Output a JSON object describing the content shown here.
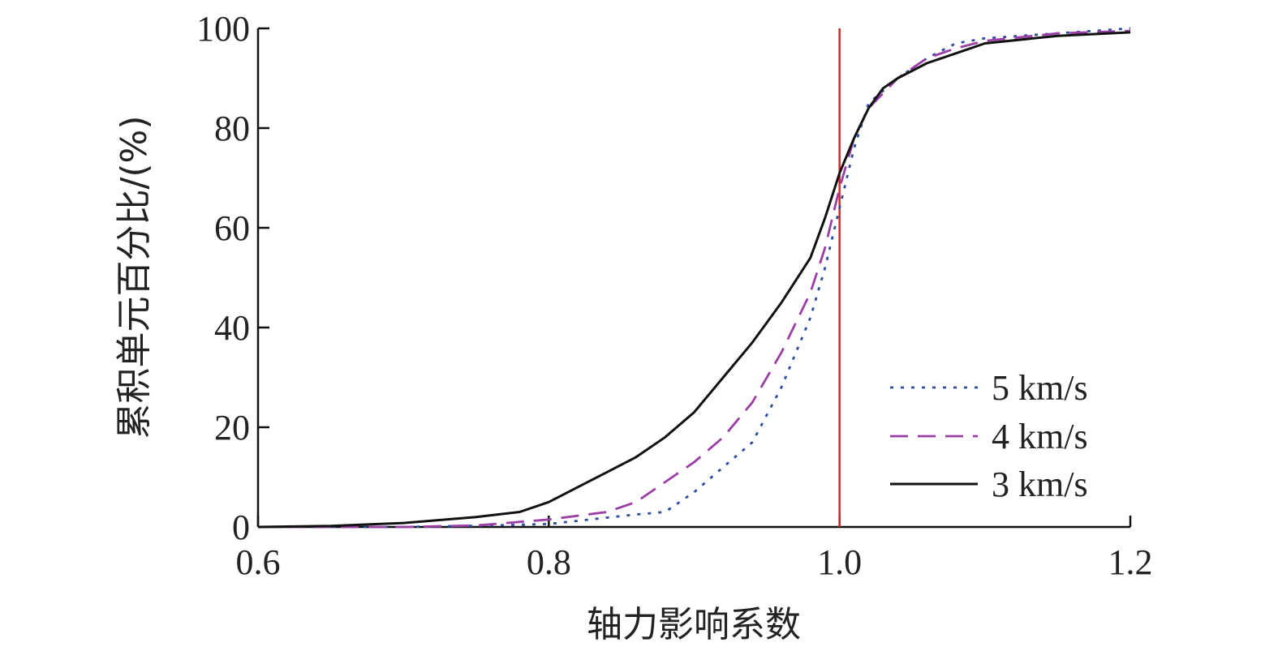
{
  "chart_data": {
    "type": "line",
    "title": "",
    "xlabel": "轴力影响系数",
    "ylabel": "累积单元百分比/(%)",
    "xlim": [
      0.6,
      1.2
    ],
    "ylim": [
      0,
      100
    ],
    "x_ticks": [
      "0.6",
      "0.8",
      "1.0",
      "1.2"
    ],
    "y_ticks": [
      "0",
      "20",
      "40",
      "60",
      "80",
      "100"
    ],
    "grid": false,
    "legend_position": "bottom-right",
    "reference_line": {
      "x": 1.0,
      "color": "#d62728"
    },
    "series": [
      {
        "name": "5 km/s",
        "style": "dotted",
        "color": "#2c4c9c",
        "points": [
          [
            0.6,
            0
          ],
          [
            0.7,
            0
          ],
          [
            0.76,
            0.3
          ],
          [
            0.8,
            0.6
          ],
          [
            0.86,
            2.5
          ],
          [
            0.88,
            3
          ],
          [
            0.9,
            7
          ],
          [
            0.92,
            12
          ],
          [
            0.94,
            17
          ],
          [
            0.96,
            28
          ],
          [
            0.98,
            42
          ],
          [
            0.99,
            52
          ],
          [
            1.0,
            64
          ],
          [
            1.01,
            76
          ],
          [
            1.02,
            85
          ],
          [
            1.04,
            90
          ],
          [
            1.06,
            94
          ],
          [
            1.08,
            97
          ],
          [
            1.1,
            98
          ],
          [
            1.15,
            99
          ],
          [
            1.2,
            100
          ]
        ]
      },
      {
        "name": "4 km/s",
        "style": "dashed",
        "color": "#9b3ea6",
        "points": [
          [
            0.6,
            0
          ],
          [
            0.7,
            0
          ],
          [
            0.75,
            0.3
          ],
          [
            0.8,
            1.5
          ],
          [
            0.84,
            3
          ],
          [
            0.86,
            5
          ],
          [
            0.88,
            9
          ],
          [
            0.9,
            13
          ],
          [
            0.92,
            18
          ],
          [
            0.94,
            25
          ],
          [
            0.96,
            35
          ],
          [
            0.98,
            47
          ],
          [
            0.99,
            56
          ],
          [
            1.0,
            68
          ],
          [
            1.01,
            78
          ],
          [
            1.02,
            84
          ],
          [
            1.04,
            90
          ],
          [
            1.06,
            94
          ],
          [
            1.08,
            96
          ],
          [
            1.1,
            97.5
          ],
          [
            1.15,
            99
          ],
          [
            1.2,
            99.5
          ]
        ]
      },
      {
        "name": "3 km/s",
        "style": "solid",
        "color": "#111111",
        "points": [
          [
            0.6,
            0
          ],
          [
            0.65,
            0.2
          ],
          [
            0.7,
            0.8
          ],
          [
            0.75,
            2
          ],
          [
            0.78,
            3
          ],
          [
            0.8,
            5
          ],
          [
            0.82,
            8
          ],
          [
            0.84,
            11
          ],
          [
            0.86,
            14
          ],
          [
            0.88,
            18
          ],
          [
            0.9,
            23
          ],
          [
            0.92,
            30
          ],
          [
            0.94,
            37
          ],
          [
            0.96,
            45
          ],
          [
            0.98,
            54
          ],
          [
            0.99,
            62
          ],
          [
            1.0,
            71
          ],
          [
            1.01,
            78
          ],
          [
            1.02,
            84
          ],
          [
            1.03,
            88
          ],
          [
            1.04,
            90
          ],
          [
            1.06,
            93
          ],
          [
            1.08,
            95
          ],
          [
            1.1,
            97
          ],
          [
            1.15,
            98.5
          ],
          [
            1.2,
            99.2
          ]
        ]
      }
    ]
  }
}
